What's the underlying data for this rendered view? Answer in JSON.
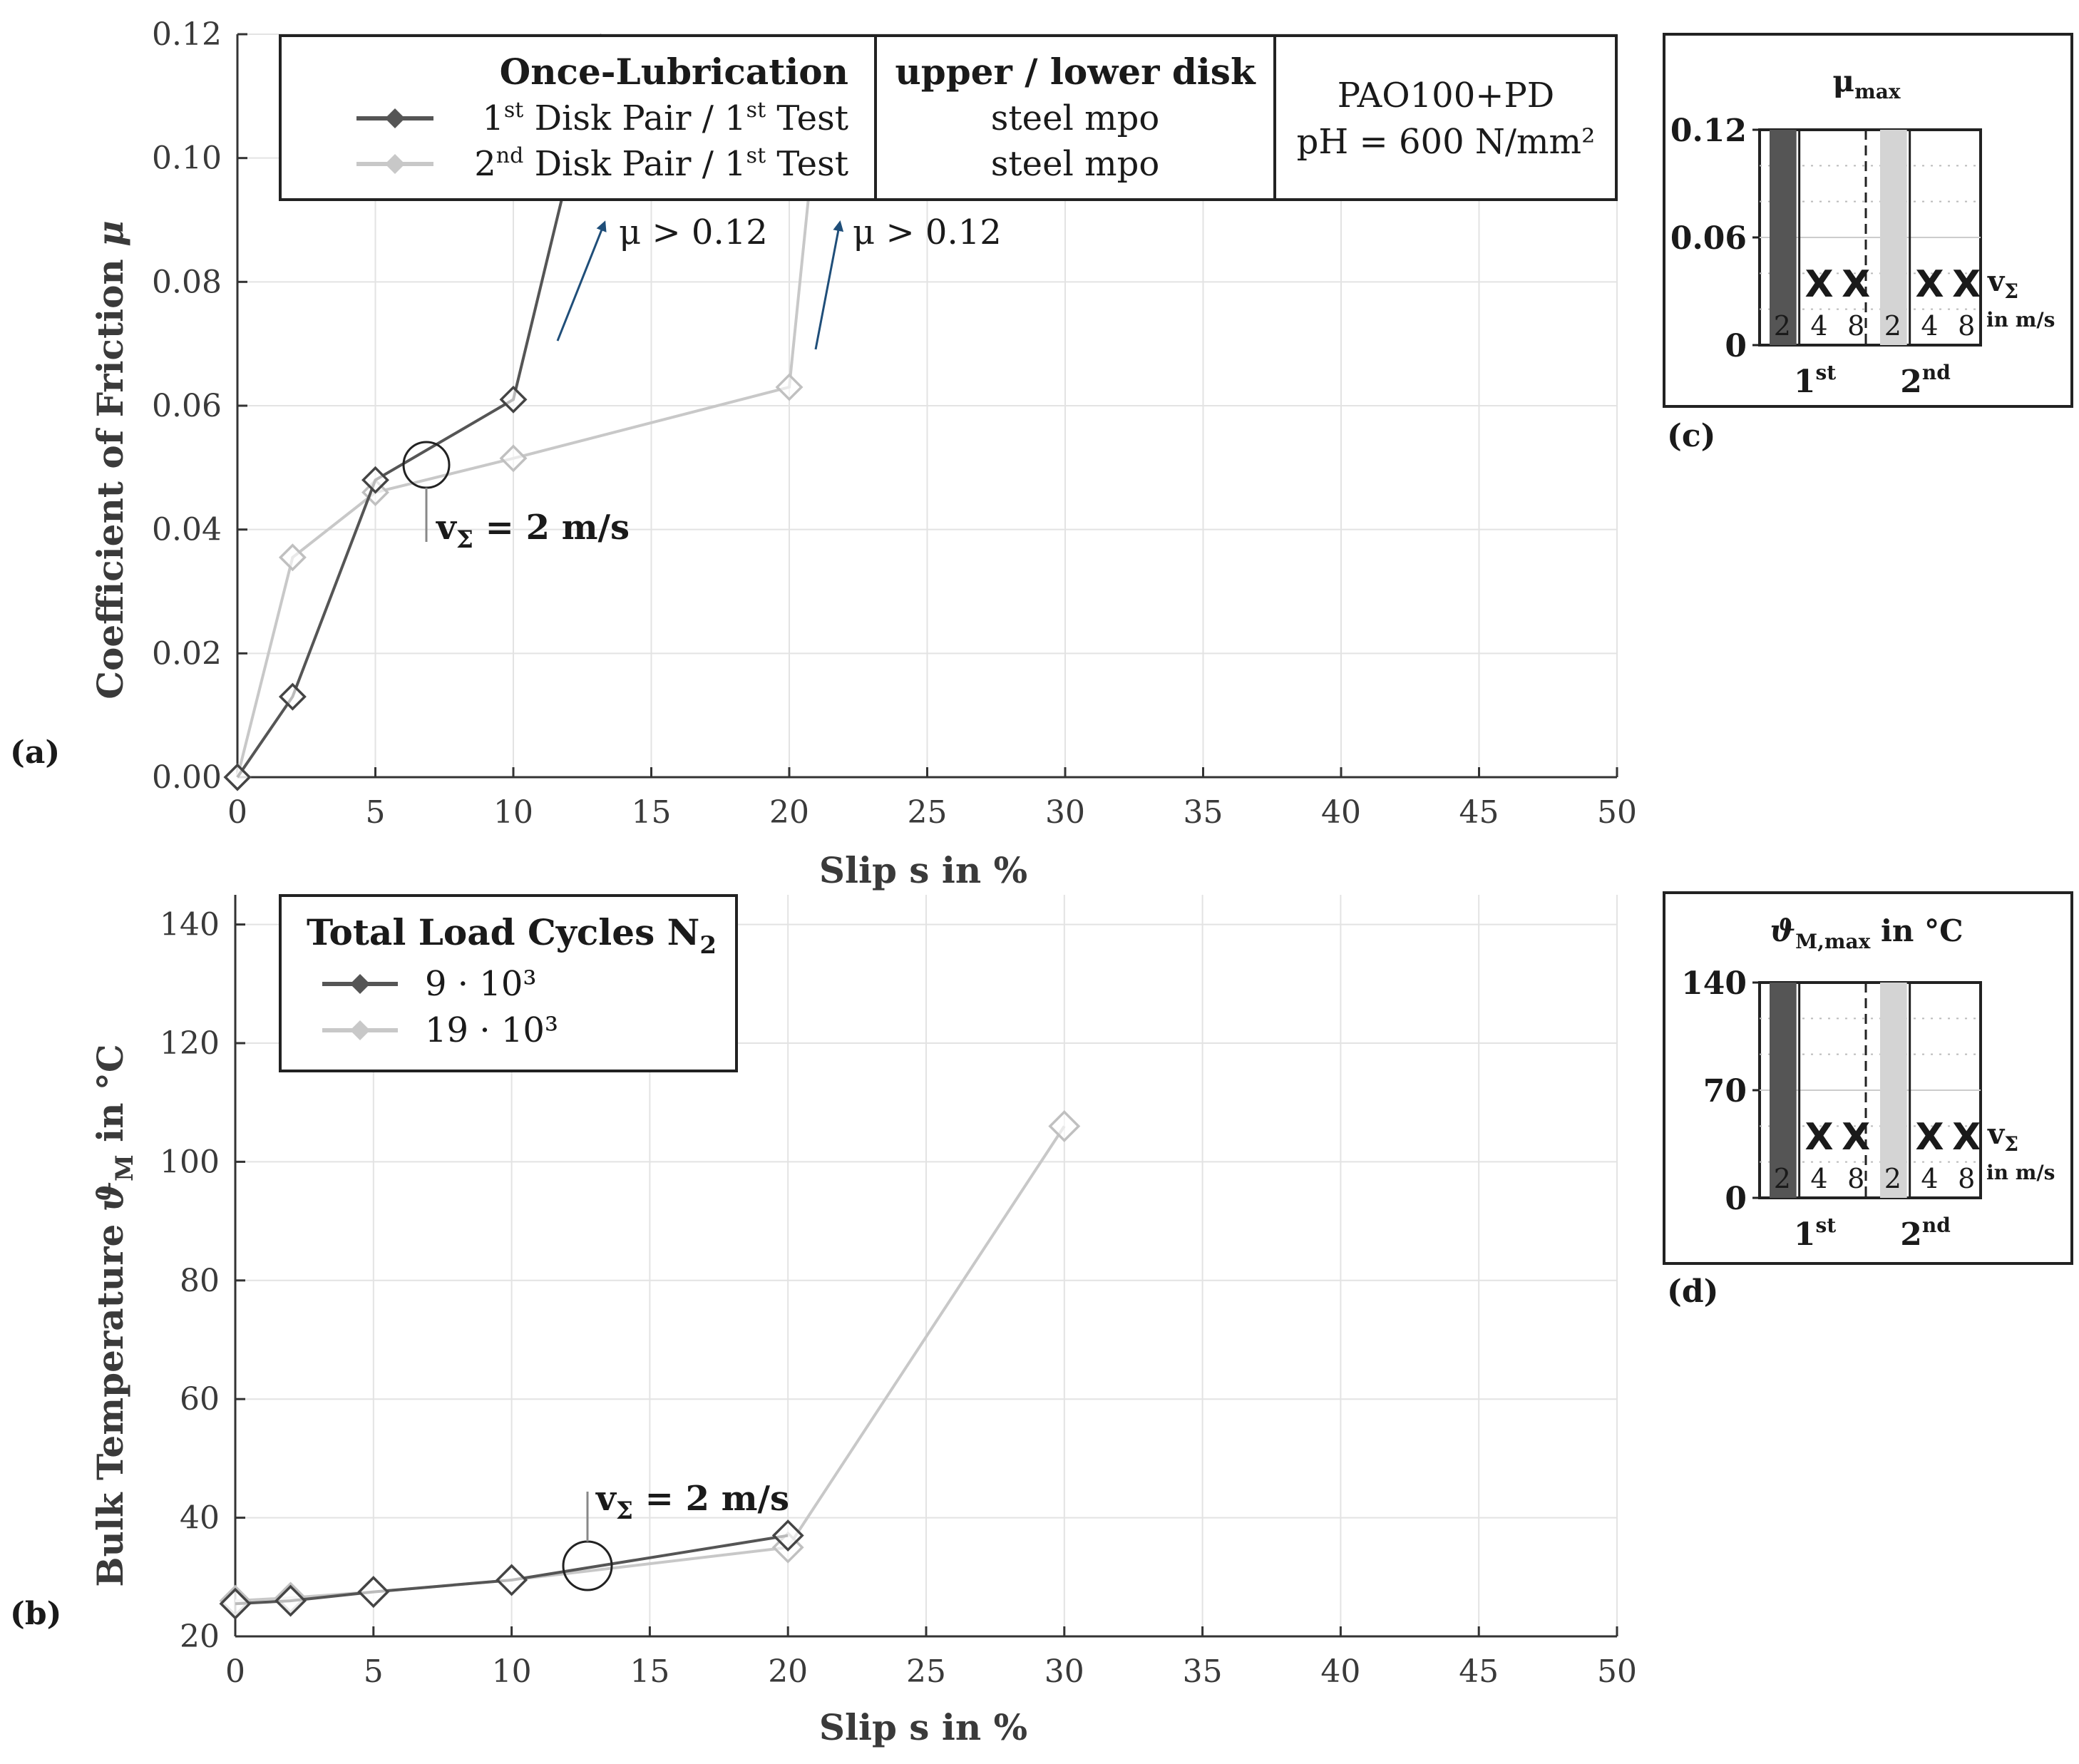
{
  "chart_data": [
    {
      "panel": "(a)",
      "type": "line",
      "xlabel": "Slip s in %",
      "ylabel": "Coefficient of Friction μ",
      "xlim": [
        0,
        50
      ],
      "ylim": [
        0,
        0.12
      ],
      "xticks": [
        "0",
        "5",
        "10",
        "15",
        "20",
        "25",
        "30",
        "35",
        "40",
        "45",
        "50"
      ],
      "yticks": [
        "0.00",
        "0.02",
        "0.04",
        "0.06",
        "0.08",
        "0.10",
        "0.12"
      ],
      "series": [
        {
          "name": "1st Disk Pair / 1st Test",
          "color": "#555555",
          "x": [
            0,
            2,
            5,
            10,
            13.2
          ],
          "y": [
            0.0,
            0.013,
            0.048,
            0.061,
            0.12
          ]
        },
        {
          "name": "2nd Disk Pair / 1st Test",
          "color": "#c8c8c8",
          "x": [
            0,
            2,
            5,
            10,
            20,
            21.3
          ],
          "y": [
            0.0,
            0.0355,
            0.046,
            0.0515,
            0.063,
            0.12
          ]
        }
      ],
      "legend": {
        "title": "Once-Lubrication",
        "col2_title": "upper / lower disk",
        "col2_rows": [
          "steel mpo",
          "steel mpo"
        ],
        "col3_line1": "PAO100+PD",
        "col3_line2": "pH = 600 N/mm²",
        "entries": [
          {
            "n": "1",
            "sup1": "st",
            "mid": " Disk Pair / 1",
            "sup2": "st",
            "end": " Test"
          },
          {
            "n": "2",
            "sup1": "nd",
            "mid": " Disk Pair / 1",
            "sup2": "st",
            "end": " Test"
          }
        ]
      },
      "annotations": {
        "arrow_text": "μ > 0.12",
        "speed_label": "vΣ = 2 m/s",
        "speed_main": "v",
        "speed_sub": "Σ",
        "speed_rest": " = 2 m/s"
      }
    },
    {
      "panel": "(b)",
      "type": "line",
      "xlabel": "Slip s in %",
      "ylabel": "Bulk Temperature ϑM in °C",
      "xlim": [
        0,
        50
      ],
      "ylim": [
        20,
        145
      ],
      "xticks": [
        "0",
        "5",
        "10",
        "15",
        "20",
        "25",
        "30",
        "35",
        "40",
        "45",
        "50"
      ],
      "yticks": [
        "20",
        "40",
        "60",
        "80",
        "100",
        "120",
        "140"
      ],
      "series": [
        {
          "name": "9 · 10³",
          "color": "#555555",
          "x": [
            0,
            2,
            5,
            10,
            20
          ],
          "y": [
            25.5,
            26,
            27.5,
            29.5,
            37
          ]
        },
        {
          "name": "19 · 10³",
          "color": "#c8c8c8",
          "x": [
            0,
            2,
            5,
            10,
            20,
            30
          ],
          "y": [
            26,
            26.5,
            27.5,
            29.5,
            35,
            106
          ]
        }
      ],
      "legend": {
        "title": "Total Load Cycles N",
        "title_sub": "2",
        "entries": [
          "9 · 10³",
          "19 · 10³"
        ]
      },
      "annotations": {
        "speed_label": "vΣ = 2 m/s"
      }
    },
    {
      "panel": "(c)",
      "type": "bar",
      "title": "μmax",
      "yticks": [
        "0",
        "0.06",
        "0.12"
      ],
      "ylim": [
        0,
        0.12
      ],
      "groups": [
        "1st",
        "2nd"
      ],
      "speeds": [
        "2",
        "4",
        "8"
      ],
      "values": {
        "1st": [
          0.12,
          null,
          null
        ],
        "2nd": [
          0.12,
          null,
          null
        ]
      },
      "failed_marker": "X",
      "speed_label": "vΣ in m/s"
    },
    {
      "panel": "(d)",
      "type": "bar",
      "title": "ϑM,max in °C",
      "yticks": [
        "0",
        "70",
        "140"
      ],
      "ylim": [
        0,
        140
      ],
      "groups": [
        "1st",
        "2nd"
      ],
      "speeds": [
        "2",
        "4",
        "8"
      ],
      "values": {
        "1st": [
          140,
          null,
          null
        ],
        "2nd": [
          140,
          null,
          null
        ]
      },
      "failed_marker": "X",
      "speed_label": "vΣ in m/s"
    }
  ],
  "labels": {
    "a": "(a)",
    "b": "(b)",
    "c": "(c)",
    "d": "(d)",
    "mu": "μ",
    "mu_sub": "max",
    "theta": "ϑ",
    "theta_sub": "M,max",
    "theta_rest": " in °C",
    "group1_n": "1",
    "group1_sup": "st",
    "group2_n": "2",
    "group2_sup": "nd",
    "v": "v",
    "sigma": "Σ",
    "in_ms": "in m/s",
    "ylabel_a": "Coefficient of Friction ",
    "ylabel_a_sym": "μ",
    "ylabel_b_pre": "Bulk Temperature ",
    "ylabel_b_sym": "ϑ",
    "ylabel_b_sub": "M",
    "ylabel_b_post": " in °C"
  },
  "colors": {
    "dark": "#555555",
    "light": "#c8c8c8",
    "arrow": "#1f4e79"
  }
}
